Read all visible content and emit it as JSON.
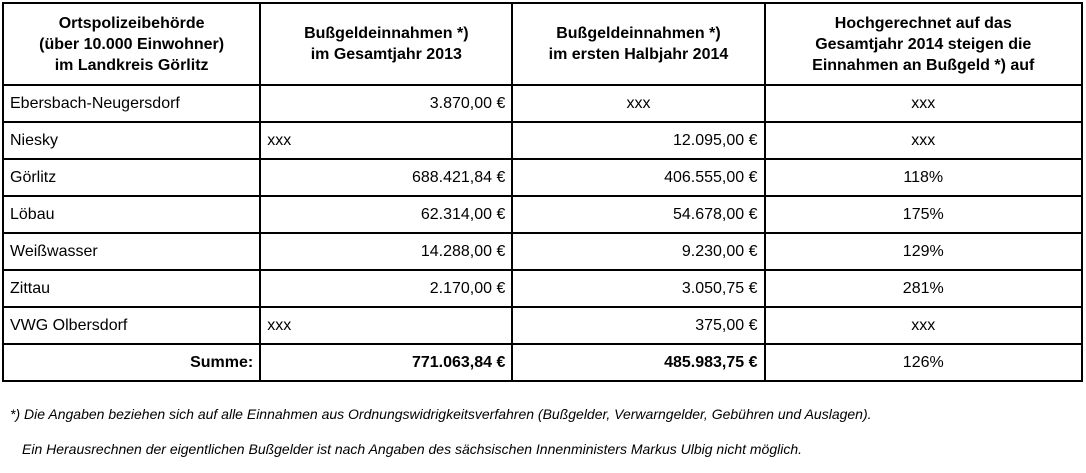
{
  "table": {
    "headers": [
      "Ortspolizeibehörde\n(über 10.000 Einwohner)\nim Landkreis Görlitz",
      "Bußgeldeinnahmen *)\nim Gesamtjahr 2013",
      "Bußgeldeinnahmen *)\nim ersten Halbjahr  2014",
      "Hochgerechnet auf das\nGesamtjahr 2014 steigen die\nEinnahmen an Bußgeld  *) auf"
    ],
    "rows": [
      {
        "name": "Ebersbach-Neugersdorf",
        "y2013": "3.870,00 €",
        "h2014": "xxx",
        "proj": "xxx"
      },
      {
        "name": "Niesky",
        "y2013": "xxx",
        "h2014": "12.095,00 €",
        "proj": "xxx"
      },
      {
        "name": "Görlitz",
        "y2013": "688.421,84 €",
        "h2014": "406.555,00 €",
        "proj": "118%"
      },
      {
        "name": "Löbau",
        "y2013": "62.314,00 €",
        "h2014": "54.678,00 €",
        "proj": "175%"
      },
      {
        "name": "Weißwasser",
        "y2013": "14.288,00 €",
        "h2014": "9.230,00 €",
        "proj": "129%"
      },
      {
        "name": "Zittau",
        "y2013": "2.170,00 €",
        "h2014": "3.050,75 €",
        "proj": "281%"
      },
      {
        "name": "VWG Olbersdorf",
        "y2013": "xxx",
        "h2014": "375,00 €",
        "proj": "xxx"
      }
    ],
    "sum": {
      "label": "Summe:",
      "y2013": "771.063,84 €",
      "h2014": "485.983,75 €",
      "proj": "126%"
    }
  },
  "footnotes": {
    "note1": "*) Die Angaben beziehen sich auf alle Einnahmen aus Ordnungswidrigkeitsverfahren (Bußgelder, Verwarngelder, Gebühren und Auslagen).",
    "note2": "Ein Herausrechnen der eigentlichen Bußgelder ist nach Angaben des sächsischen Innenministers Markus Ulbig nicht möglich."
  }
}
